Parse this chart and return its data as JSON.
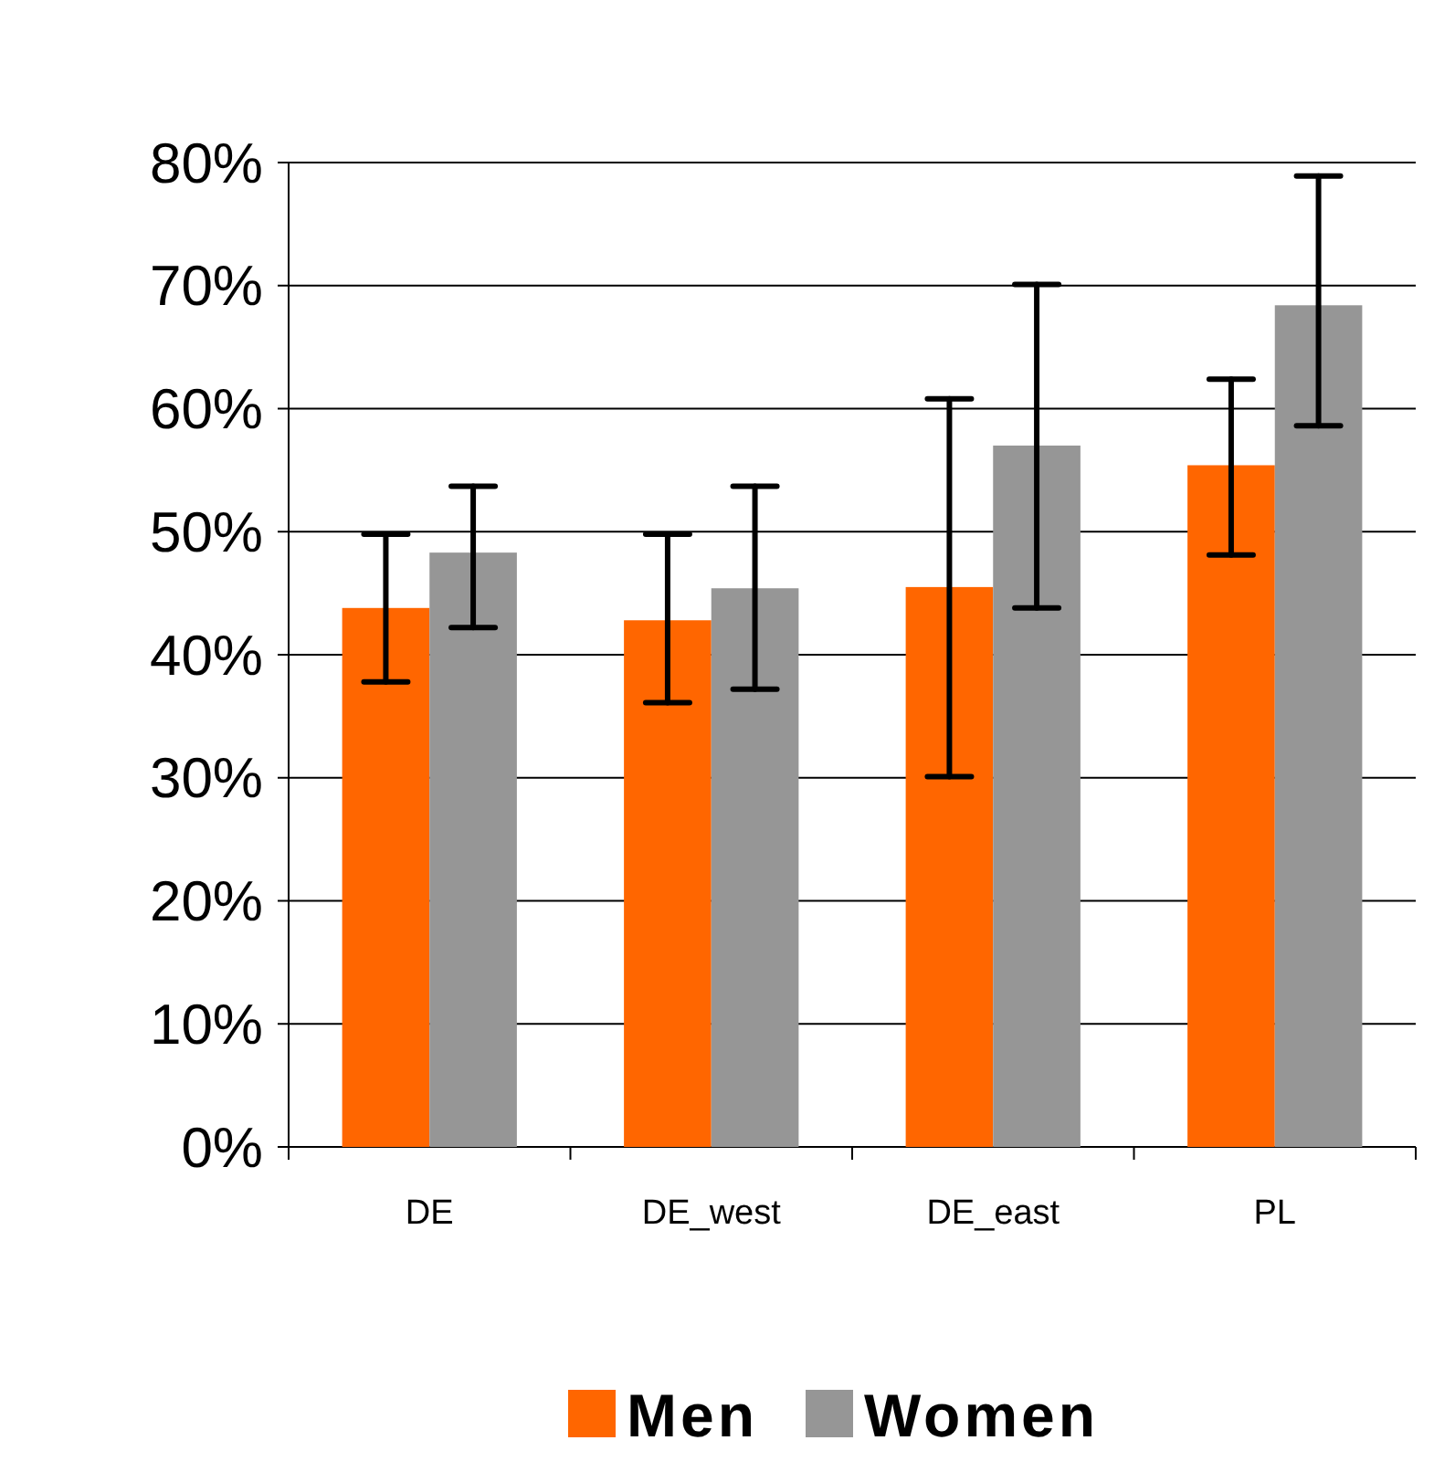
{
  "chart_data": {
    "type": "bar",
    "categories": [
      "DE",
      "DE_west",
      "DE_east",
      "PL"
    ],
    "series": [
      {
        "name": "Men",
        "color": "#ff6600",
        "values": [
          43.8,
          42.8,
          45.5,
          55.4
        ],
        "errors": [
          [
            37.8,
            49.8
          ],
          [
            36.1,
            49.8
          ],
          [
            30.1,
            60.8
          ],
          [
            48.1,
            62.4
          ]
        ]
      },
      {
        "name": "Women",
        "color": "#969696",
        "values": [
          48.3,
          45.4,
          57.0,
          68.4
        ],
        "errors": [
          [
            42.2,
            53.7
          ],
          [
            37.2,
            53.7
          ],
          [
            43.8,
            70.1
          ],
          [
            58.6,
            78.9
          ]
        ]
      }
    ],
    "ylim": [
      0,
      80
    ],
    "yticks": [
      {
        "value": 0,
        "label": "0%"
      },
      {
        "value": 10,
        "label": "10%"
      },
      {
        "value": 20,
        "label": "20%"
      },
      {
        "value": 30,
        "label": "30%"
      },
      {
        "value": 40,
        "label": "40%"
      },
      {
        "value": 50,
        "label": "50%"
      },
      {
        "value": 60,
        "label": "60%"
      },
      {
        "value": 70,
        "label": "70%"
      },
      {
        "value": 80,
        "label": "80%"
      }
    ],
    "grid": "y",
    "legend": "bottom"
  }
}
